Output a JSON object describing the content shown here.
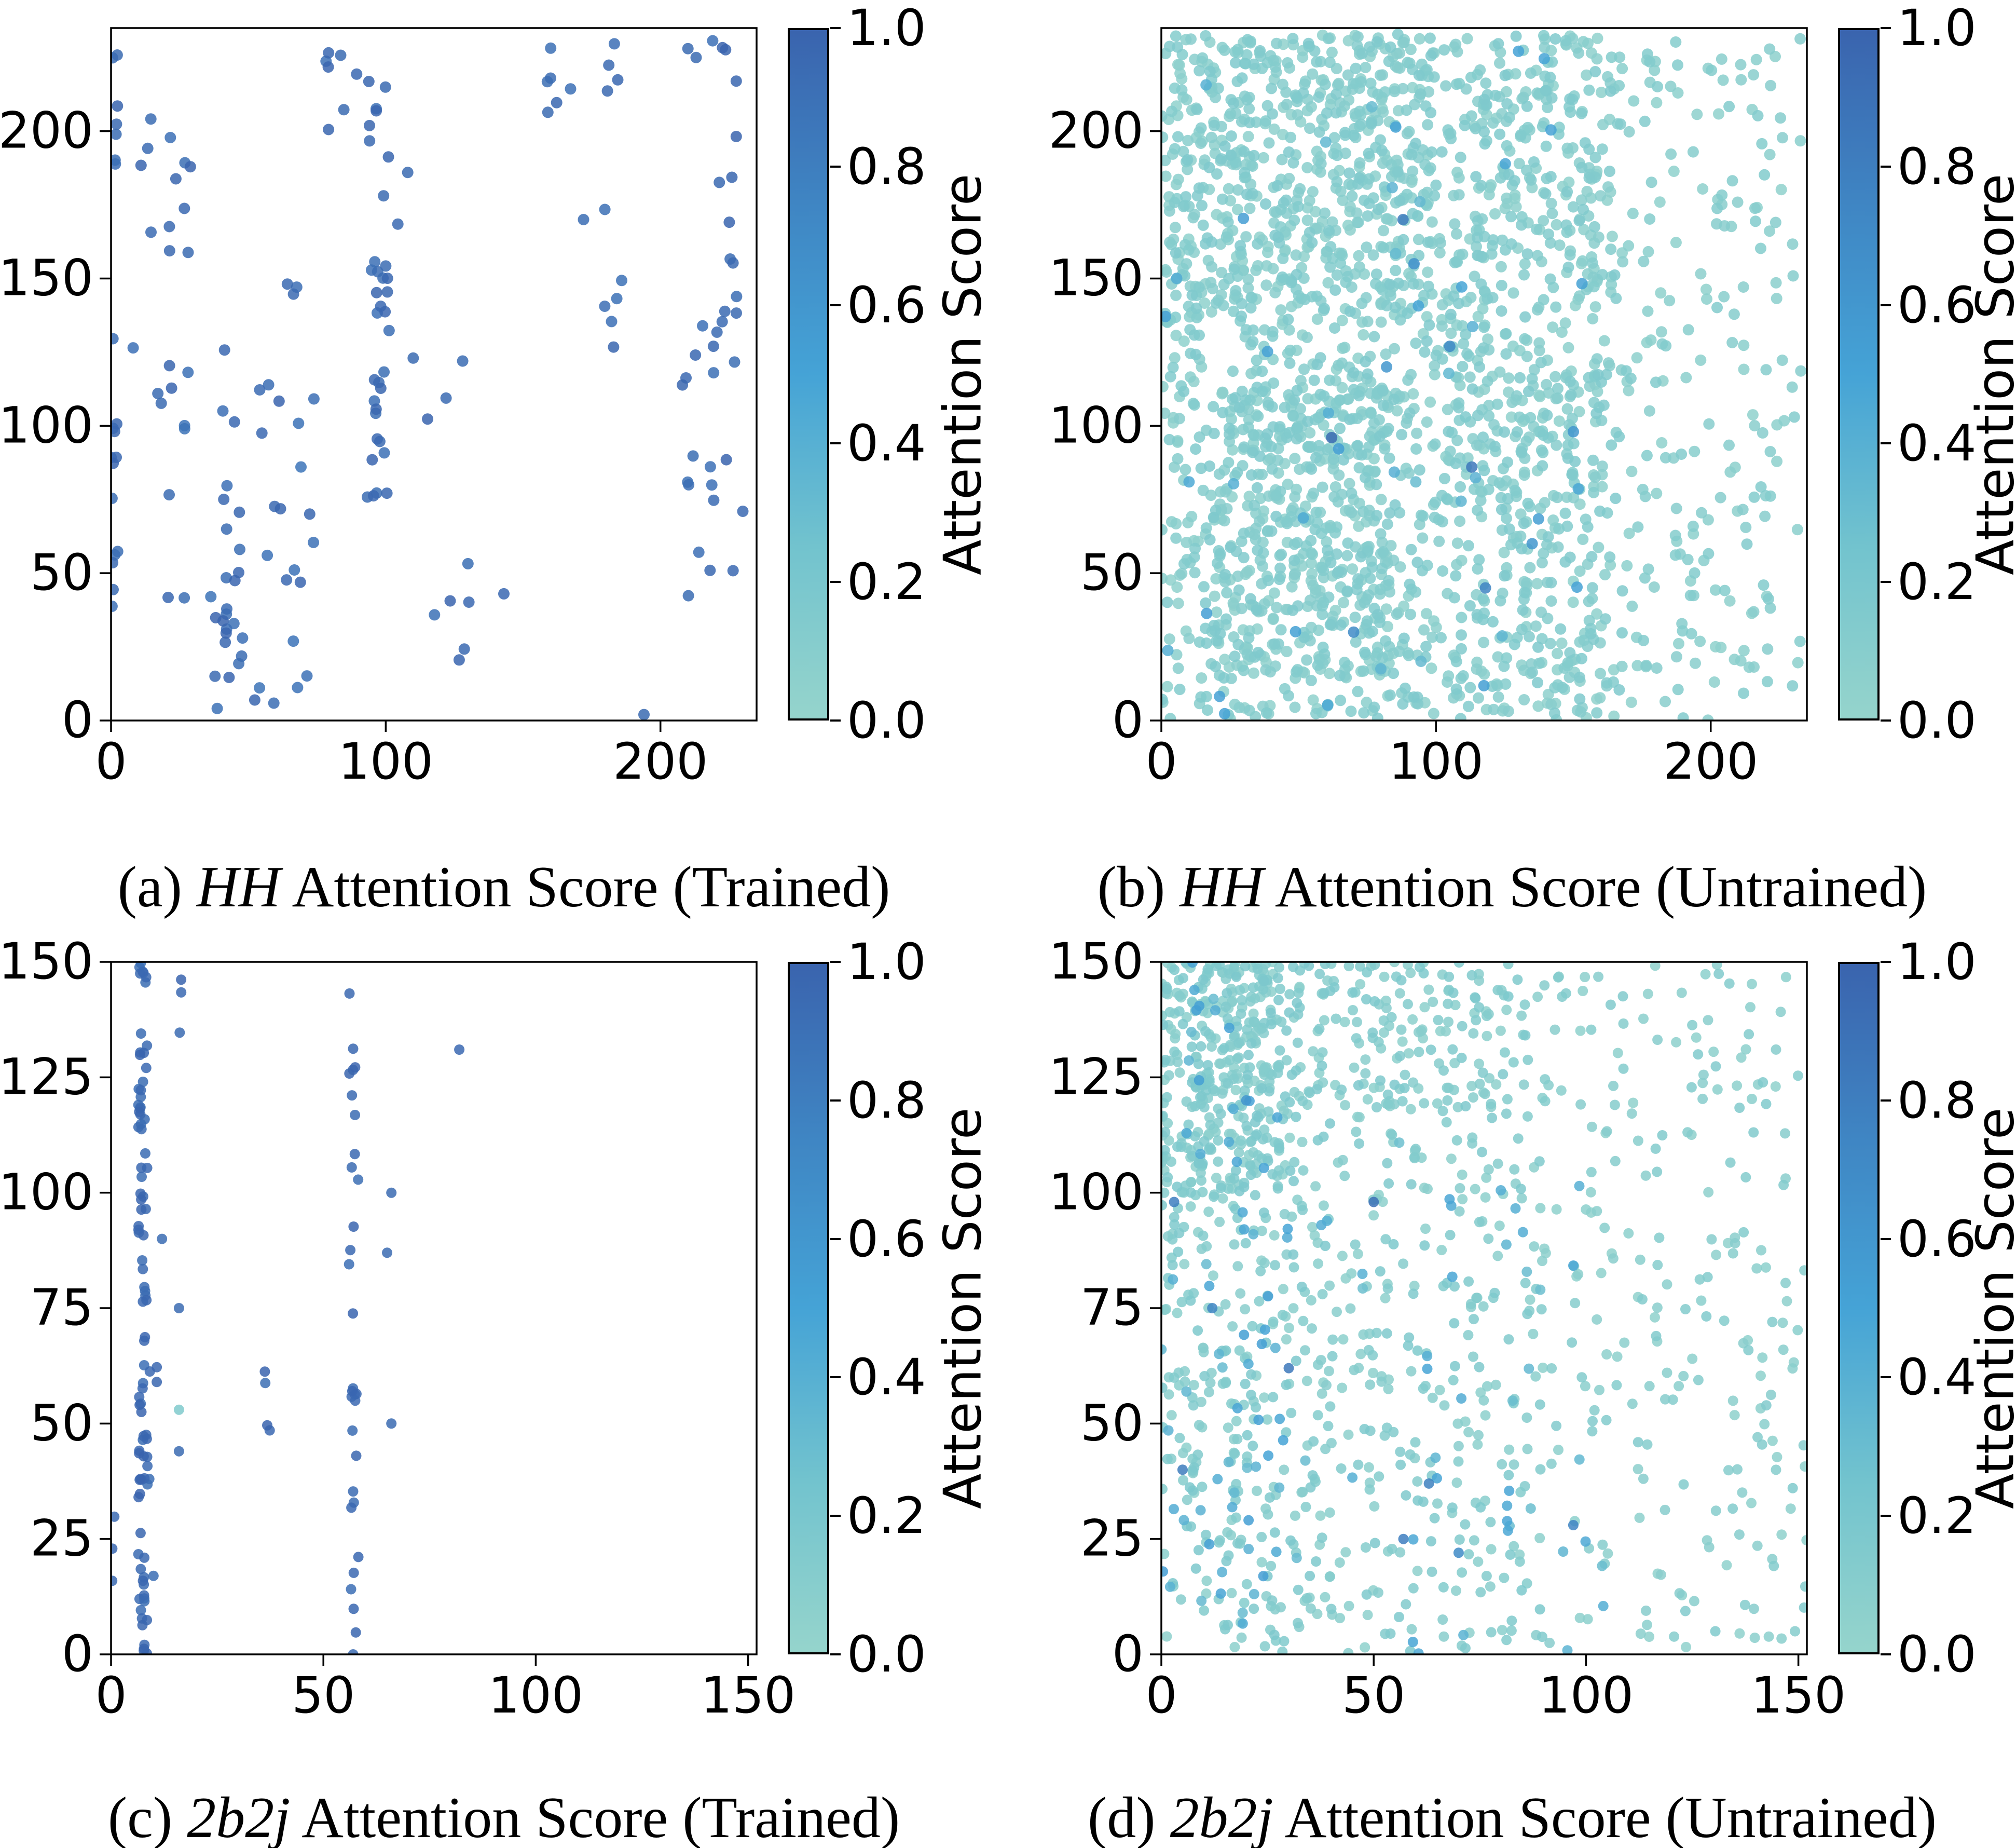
{
  "figure": {
    "background": "#ffffff",
    "point_opacity": 0.85,
    "cmap": [
      [
        0.0,
        "#95d4cc"
      ],
      [
        0.25,
        "#72c3ce"
      ],
      [
        0.5,
        "#45a3d6"
      ],
      [
        0.75,
        "#3f85c3"
      ],
      [
        1.0,
        "#3a64ae"
      ]
    ]
  },
  "chart_data": [
    {
      "id": "a",
      "type": "scatter",
      "title": "(a) HH Attention Score (Trained)",
      "caption": {
        "index": "(a) ",
        "term": "HH",
        "rest": " Attention Score (Trained)"
      },
      "xlim": [
        0,
        235
      ],
      "ylim": [
        0,
        235
      ],
      "xticks": [
        0,
        100,
        200
      ],
      "yticks": [
        0,
        50,
        100,
        150,
        200
      ],
      "grid": false,
      "colorbar": {
        "label": "Attention Score",
        "ticks": [
          "1.0",
          "0.8",
          "0.6",
          "0.4",
          "0.2",
          "0.0"
        ]
      },
      "point_radius": 11,
      "seed": 20,
      "features": [
        {
          "kind": "column",
          "x": [
            0,
            2.5
          ],
          "y": [
            0,
            232
          ],
          "n": 20,
          "score": [
            0.9,
            1
          ]
        },
        {
          "kind": "cloud",
          "x": [
            5,
            75
          ],
          "y": [
            0,
            135
          ],
          "n": 46,
          "score": [
            0.88,
            1
          ]
        },
        {
          "kind": "column",
          "x": [
            40,
            48
          ],
          "y": [
            8,
            78
          ],
          "n": 12,
          "score": [
            0.9,
            1
          ]
        },
        {
          "kind": "column",
          "x": [
            93,
            101
          ],
          "y": [
            72,
            233
          ],
          "n": 34,
          "score": [
            0.9,
            1
          ]
        },
        {
          "kind": "cloud",
          "x": [
            78,
            92
          ],
          "y": [
            200,
            233
          ],
          "n": 7,
          "score": [
            0.9,
            1
          ]
        },
        {
          "kind": "cloud",
          "x": [
            100,
            155
          ],
          "y": [
            0,
            175
          ],
          "n": 10,
          "score": [
            0.9,
            1
          ]
        },
        {
          "kind": "cloud",
          "x": [
            8,
            30
          ],
          "y": [
            140,
            233
          ],
          "n": 12,
          "score": [
            0.9,
            1
          ]
        },
        {
          "kind": "column",
          "x": [
            208,
            216
          ],
          "y": [
            40,
            135
          ],
          "n": 9,
          "score": [
            0.9,
            1
          ]
        },
        {
          "kind": "column",
          "x": [
            218,
            229
          ],
          "y": [
            40,
            233
          ],
          "n": 24,
          "score": [
            0.9,
            1
          ]
        },
        {
          "kind": "column",
          "x": [
            178,
            186
          ],
          "y": [
            105,
            233
          ],
          "n": 10,
          "score": [
            0.9,
            1
          ]
        },
        {
          "kind": "cloud",
          "x": [
            158,
            176
          ],
          "y": [
            195,
            233
          ],
          "n": 5,
          "score": [
            0.9,
            1
          ]
        },
        {
          "kind": "column",
          "x": [
            63,
            68
          ],
          "y": [
            130,
            170
          ],
          "n": 3,
          "score": [
            0.9,
            1
          ]
        }
      ],
      "points": [
        [
          230,
          71,
          0.97
        ],
        [
          194,
          2,
          0.95
        ],
        [
          143,
          43,
          0.96
        ],
        [
          128,
          122,
          0.94
        ],
        [
          110,
          123,
          0.95
        ],
        [
          108,
          186,
          0.95
        ],
        [
          160,
          218,
          0.94
        ],
        [
          172,
          170,
          0.93
        ],
        [
          210,
          228,
          0.95
        ],
        [
          213,
          225,
          0.95
        ]
      ]
    },
    {
      "id": "b",
      "type": "scatter",
      "title": "(b) HH Attention Score (Untrained)",
      "caption": {
        "index": "(b) ",
        "term": "HH",
        "rest": " Attention Score (Untrained)"
      },
      "xlim": [
        0,
        235
      ],
      "ylim": [
        0,
        235
      ],
      "xticks": [
        0,
        100,
        200
      ],
      "yticks": [
        0,
        50,
        100,
        150,
        200
      ],
      "grid": false,
      "colorbar": {
        "label": "Attention Score",
        "ticks": [
          "1.0",
          "0.8",
          "0.6",
          "0.4",
          "0.2",
          "0.0"
        ]
      },
      "point_radius": 11,
      "seed": 77,
      "features": [
        {
          "kind": "cloud",
          "x": [
            0,
            168
          ],
          "y": [
            0,
            233
          ],
          "n": 1450,
          "score": [
            0.04,
            0.16
          ]
        },
        {
          "kind": "cloud",
          "x": [
            18,
            85
          ],
          "y": [
            15,
            115
          ],
          "n": 320,
          "score": [
            0.04,
            0.16
          ]
        },
        {
          "kind": "cloud",
          "x": [
            3,
            100
          ],
          "y": [
            135,
            233
          ],
          "n": 320,
          "score": [
            0.04,
            0.16
          ]
        },
        {
          "kind": "cloud",
          "x": [
            168,
            233
          ],
          "y": [
            0,
            233
          ],
          "n": 200,
          "score": [
            0.04,
            0.14
          ]
        },
        {
          "kind": "column",
          "x": [
            107,
            110
          ],
          "y": [
            0,
            233
          ],
          "n": 24,
          "score": [
            0.05,
            0.15
          ]
        },
        {
          "kind": "column",
          "x": [
            115,
            118
          ],
          "y": [
            0,
            233
          ],
          "n": 24,
          "score": [
            0.05,
            0.15
          ]
        },
        {
          "kind": "column",
          "x": [
            123,
            126
          ],
          "y": [
            0,
            233
          ],
          "n": 24,
          "score": [
            0.05,
            0.15
          ]
        },
        {
          "kind": "column",
          "x": [
            131,
            134
          ],
          "y": [
            0,
            233
          ],
          "n": 24,
          "score": [
            0.05,
            0.15
          ]
        },
        {
          "kind": "column",
          "x": [
            139,
            142
          ],
          "y": [
            10,
            233
          ],
          "n": 22,
          "score": [
            0.05,
            0.15
          ]
        },
        {
          "kind": "column",
          "x": [
            147,
            150
          ],
          "y": [
            10,
            233
          ],
          "n": 22,
          "score": [
            0.05,
            0.15
          ]
        },
        {
          "kind": "column",
          "x": [
            155,
            158
          ],
          "y": [
            20,
            233
          ],
          "n": 20,
          "score": [
            0.05,
            0.15
          ]
        },
        {
          "kind": "cloud",
          "x": [
            0,
            165
          ],
          "y": [
            0,
            233
          ],
          "n": 42,
          "score": [
            0.3,
            0.55
          ]
        }
      ],
      "points": [
        [
          62,
          96,
          0.95
        ],
        [
          88,
          170,
          0.82
        ],
        [
          113,
          86,
          0.85
        ],
        [
          118,
          45,
          0.75
        ],
        [
          105,
          127,
          0.72
        ],
        [
          92,
          155,
          0.65
        ],
        [
          135,
          60,
          0.6
        ],
        [
          70,
          30,
          0.7
        ],
        [
          150,
          98,
          0.6
        ],
        [
          82,
          120,
          0.6
        ]
      ]
    },
    {
      "id": "c",
      "type": "scatter",
      "title": "(c) 2b2j Attention Score (Trained)",
      "caption": {
        "index": "(c) ",
        "term": "2b2j",
        "rest": " Attention Score (Trained)"
      },
      "xlim": [
        0,
        152
      ],
      "ylim": [
        0,
        150
      ],
      "xticks": [
        0,
        50,
        100,
        150
      ],
      "yticks": [
        0,
        25,
        50,
        75,
        100,
        125,
        150
      ],
      "grid": false,
      "colorbar": {
        "label": "Attention Score",
        "ticks": [
          "1.0",
          "0.8",
          "0.6",
          "0.4",
          "0.2",
          "0.0"
        ]
      },
      "point_radius": 10,
      "seed": 5,
      "features": [
        {
          "kind": "column",
          "x": [
            6.4,
            8.6
          ],
          "y": [
            0,
            150
          ],
          "n": 90,
          "score": [
            0.92,
            1
          ]
        },
        {
          "kind": "column",
          "x": [
            56,
            58.5
          ],
          "y": [
            0,
            148
          ],
          "n": 30,
          "score": [
            0.92,
            1
          ]
        },
        {
          "kind": "column",
          "x": [
            15.5,
            16.8
          ],
          "y": [
            127,
            148
          ],
          "n": 3,
          "score": [
            0.92,
            1
          ]
        },
        {
          "kind": "column",
          "x": [
            36,
            38
          ],
          "y": [
            28,
            68
          ],
          "n": 4,
          "score": [
            0.92,
            1
          ]
        },
        {
          "kind": "column",
          "x": [
            9,
            11
          ],
          "y": [
            58,
            80
          ],
          "n": 3,
          "score": [
            0.92,
            1
          ]
        },
        {
          "kind": "column",
          "x": [
            0,
            1
          ],
          "y": [
            13,
            33
          ],
          "n": 3,
          "score": [
            0.92,
            1
          ]
        }
      ],
      "points": [
        [
          82,
          131,
          0.97
        ],
        [
          66,
          100,
          0.95
        ],
        [
          65,
          87,
          0.95
        ],
        [
          66,
          50,
          0.95
        ],
        [
          16,
          75,
          0.95
        ],
        [
          16,
          44,
          0.95
        ],
        [
          16,
          53,
          0.15
        ],
        [
          57,
          0,
          0.95
        ],
        [
          10,
          17,
          0.93
        ],
        [
          12,
          90,
          0.94
        ],
        [
          9,
          38,
          0.93
        ]
      ]
    },
    {
      "id": "d",
      "type": "scatter",
      "title": "(d) 2b2j Attention Score (Untrained)",
      "caption": {
        "index": "(d) ",
        "term": "2b2j",
        "rest": " Attention Score (Untrained)"
      },
      "xlim": [
        0,
        152
      ],
      "ylim": [
        0,
        150
      ],
      "xticks": [
        0,
        50,
        100,
        150
      ],
      "yticks": [
        0,
        25,
        50,
        75,
        100,
        125,
        150
      ],
      "grid": false,
      "colorbar": {
        "label": "Attention Score",
        "ticks": [
          "1.0",
          "0.8",
          "0.6",
          "0.4",
          "0.2",
          "0.0"
        ]
      },
      "point_radius": 10,
      "seed": 91,
      "features": [
        {
          "kind": "cloud",
          "x": [
            0,
            40
          ],
          "y": [
            0,
            150
          ],
          "n": 400,
          "score": [
            0.05,
            0.18
          ]
        },
        {
          "kind": "cloud",
          "x": [
            40,
            90
          ],
          "y": [
            0,
            150
          ],
          "n": 320,
          "score": [
            0.05,
            0.17
          ]
        },
        {
          "kind": "cloud",
          "x": [
            90,
            152
          ],
          "y": [
            0,
            150
          ],
          "n": 230,
          "score": [
            0.04,
            0.15
          ]
        },
        {
          "kind": "cloud",
          "x": [
            0,
            28
          ],
          "y": [
            100,
            150
          ],
          "n": 280,
          "score": [
            0.05,
            0.18
          ]
        },
        {
          "kind": "cloud",
          "x": [
            28,
            78
          ],
          "y": [
            118,
            150
          ],
          "n": 110,
          "score": [
            0.05,
            0.17
          ]
        },
        {
          "kind": "cloud",
          "x": [
            0,
            30
          ],
          "y": [
            0,
            150
          ],
          "n": 65,
          "score": [
            0.3,
            0.55
          ]
        },
        {
          "kind": "cloud",
          "x": [
            30,
            105
          ],
          "y": [
            0,
            112
          ],
          "n": 42,
          "score": [
            0.28,
            0.5
          ]
        }
      ],
      "points": [
        [
          3,
          98,
          0.8
        ],
        [
          12,
          75,
          0.75
        ],
        [
          30,
          62,
          0.85
        ],
        [
          50,
          98,
          0.9
        ],
        [
          57,
          25,
          0.8
        ],
        [
          70,
          22,
          0.7
        ],
        [
          97,
          28,
          0.75
        ],
        [
          5,
          40,
          0.82
        ],
        [
          63,
          37,
          0.78
        ],
        [
          20,
          120,
          0.6
        ]
      ]
    }
  ]
}
